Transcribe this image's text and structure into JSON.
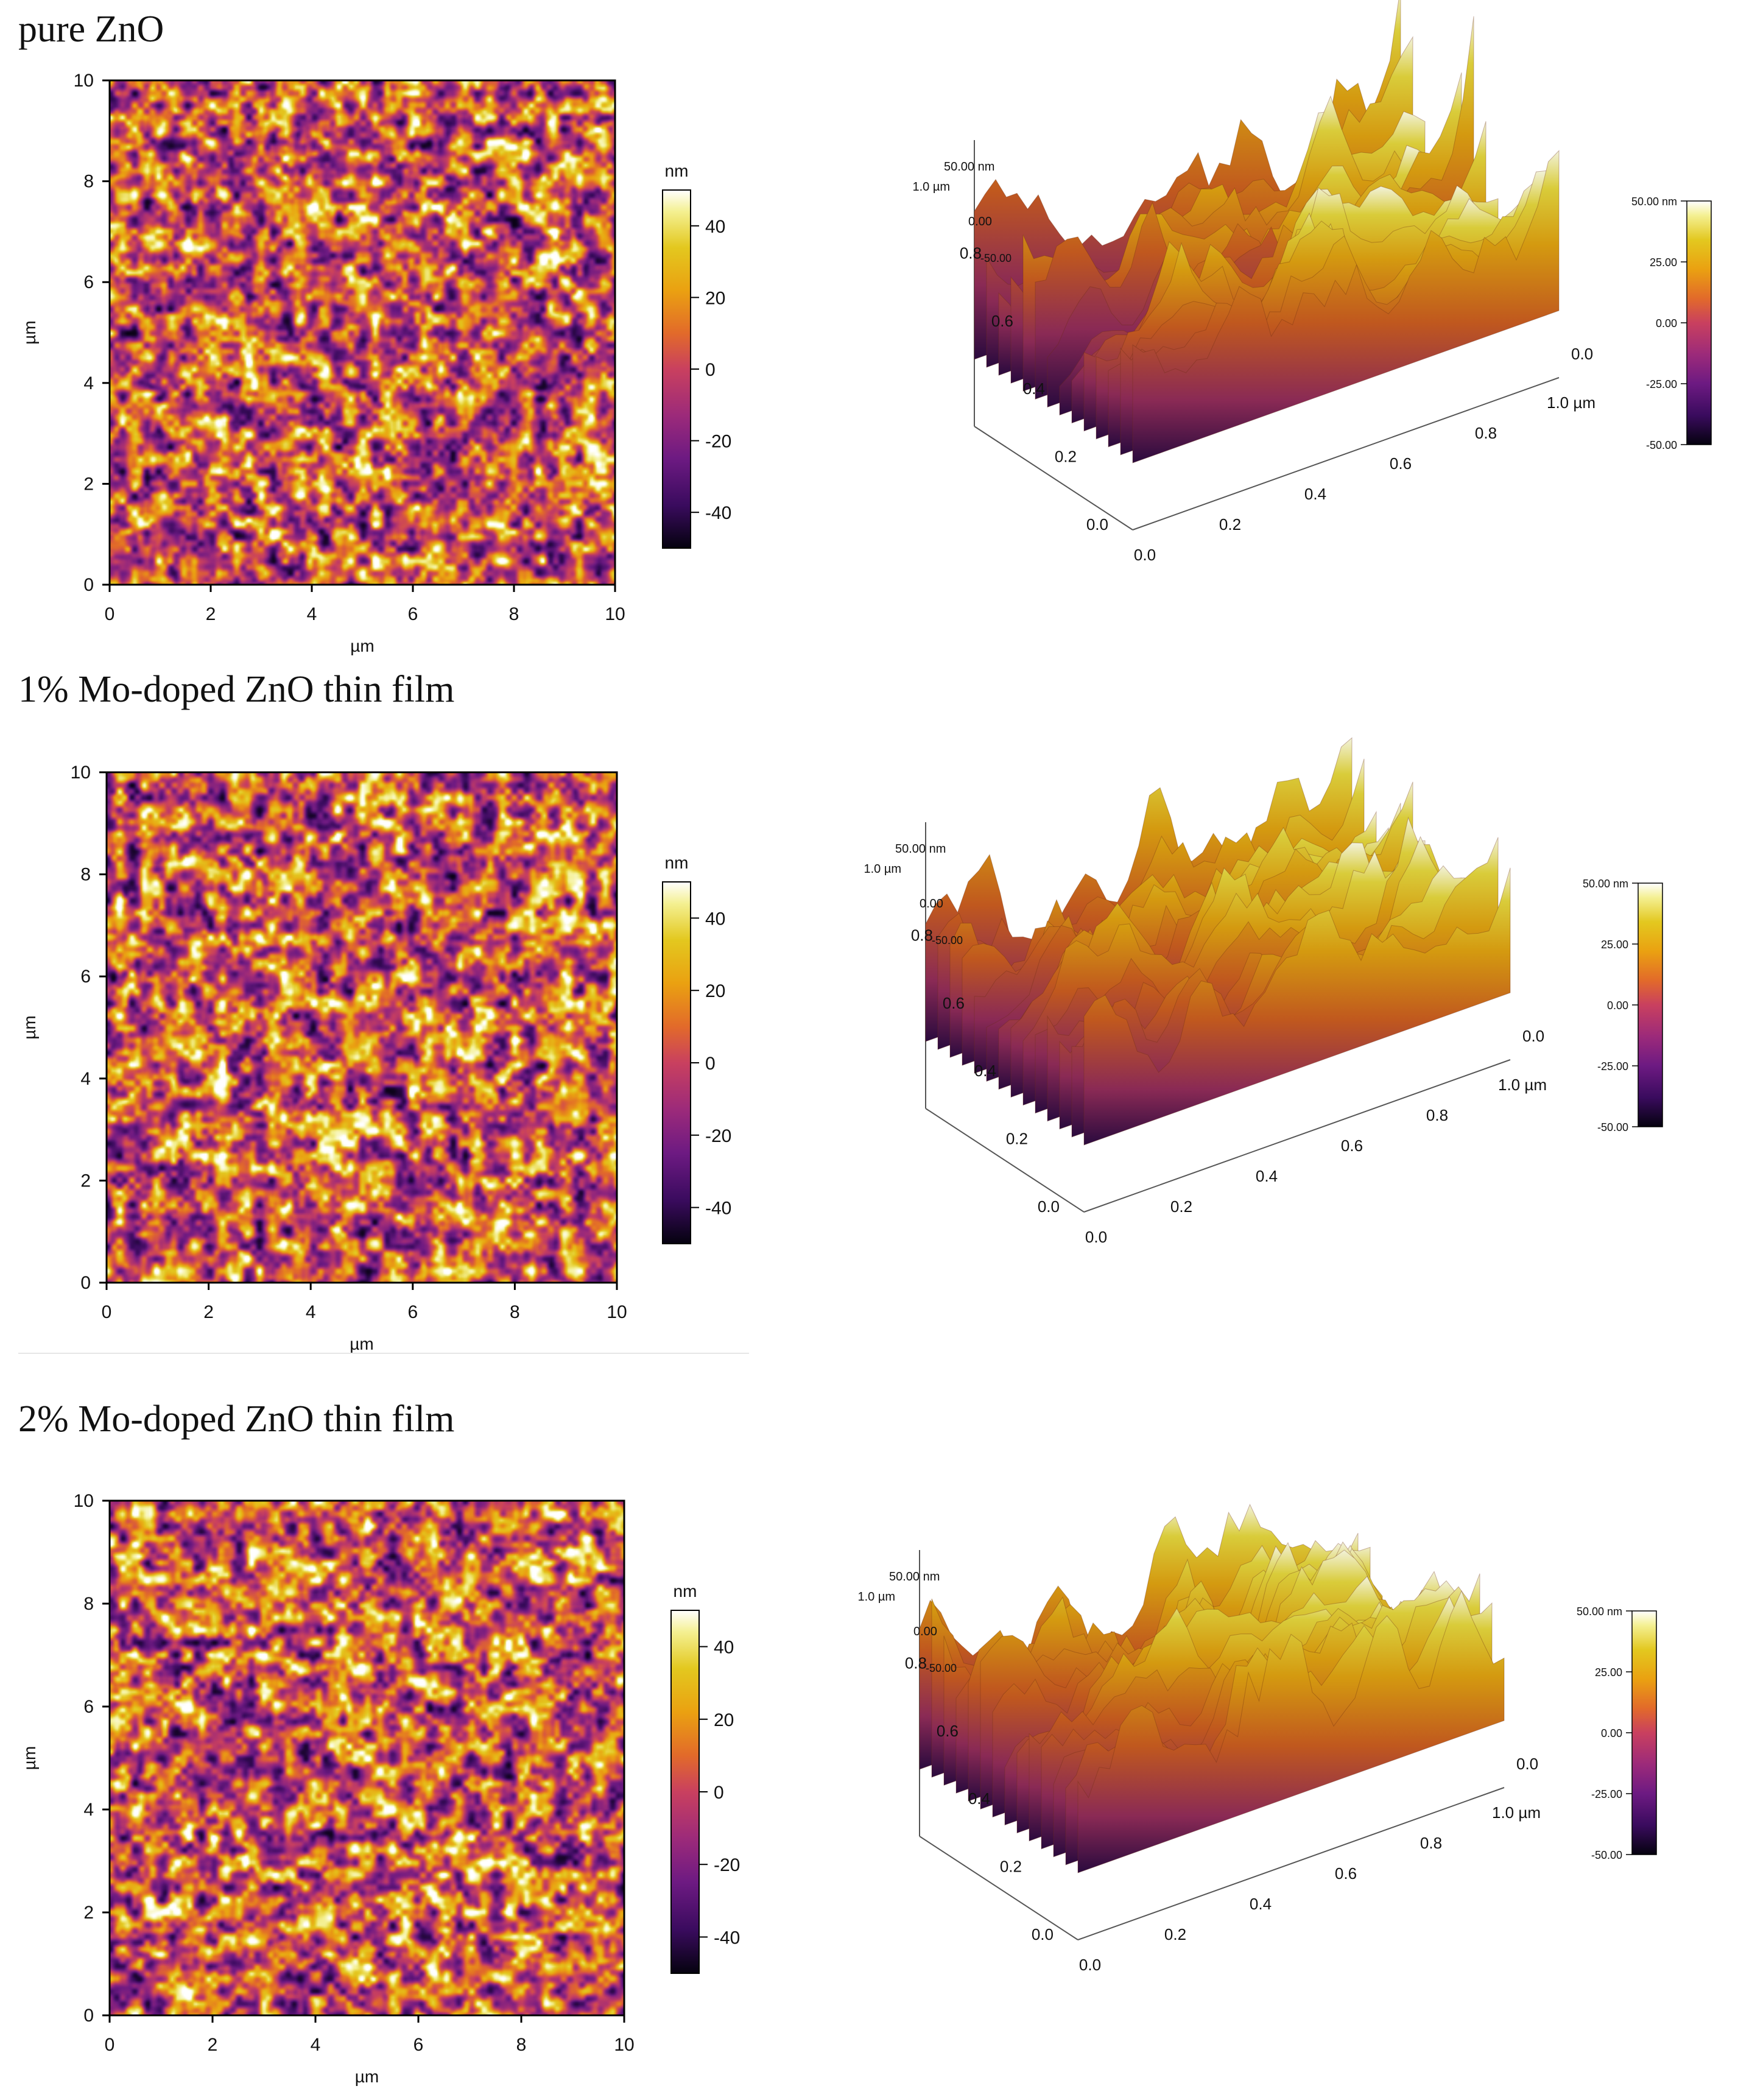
{
  "panels": [
    {
      "title": "pure ZnO",
      "map2d": {
        "axis_unit": "µm",
        "x_ticks": [
          "0",
          "2",
          "4",
          "6",
          "8",
          "10"
        ],
        "y_ticks": [
          "0",
          "2",
          "4",
          "6",
          "8",
          "10"
        ],
        "colorbar_unit": "nm",
        "colorbar_ticks": [
          "40",
          "20",
          "0",
          "-20",
          "-40"
        ]
      },
      "map3d": {
        "z_labels": [
          "50.00 nm",
          "0.00",
          "-50.00"
        ],
        "y_axis_labels": [
          "1.0 µm",
          "0.8",
          "0.6",
          "0.4",
          "0.2",
          "0.0"
        ],
        "x_axis_labels": [
          "0.0",
          "0.2",
          "0.4",
          "0.6",
          "0.8",
          "1.0 µm"
        ],
        "back_label": "0.0",
        "colorbar_ticks": [
          "50.00 nm",
          "25.00",
          "0.00",
          "-25.00",
          "-50.00"
        ]
      }
    },
    {
      "title": "1% Mo-doped ZnO thin film",
      "map2d": {
        "axis_unit": "µm",
        "x_ticks": [
          "0",
          "2",
          "4",
          "6",
          "8",
          "10"
        ],
        "y_ticks": [
          "0",
          "2",
          "4",
          "6",
          "8",
          "10"
        ],
        "colorbar_unit": "nm",
        "colorbar_ticks": [
          "40",
          "20",
          "0",
          "-20",
          "-40"
        ]
      },
      "map3d": {
        "z_labels": [
          "50.00 nm",
          "0.00",
          "-50.00"
        ],
        "y_axis_labels": [
          "1.0 µm",
          "0.8",
          "0.6",
          "0.4",
          "0.2",
          "0.0"
        ],
        "x_axis_labels": [
          "0.0",
          "0.2",
          "0.4",
          "0.6",
          "0.8",
          "1.0 µm"
        ],
        "back_label": "0.0",
        "colorbar_ticks": [
          "50.00 nm",
          "25.00",
          "0.00",
          "-25.00",
          "-50.00"
        ]
      }
    },
    {
      "title": "2% Mo-doped ZnO thin film",
      "map2d": {
        "axis_unit": "µm",
        "x_ticks": [
          "0",
          "2",
          "4",
          "6",
          "8",
          "10"
        ],
        "y_ticks": [
          "0",
          "2",
          "4",
          "6",
          "8",
          "10"
        ],
        "colorbar_unit": "nm",
        "colorbar_ticks": [
          "40",
          "20",
          "0",
          "-20",
          "-40"
        ]
      },
      "map3d": {
        "z_labels": [
          "50.00 nm",
          "0.00",
          "-50.00"
        ],
        "y_axis_labels": [
          "1.0 µm",
          "0.8",
          "0.6",
          "0.4",
          "0.2",
          "0.0"
        ],
        "x_axis_labels": [
          "0.0",
          "0.2",
          "0.4",
          "0.6",
          "0.8",
          "1.0 µm"
        ],
        "back_label": "0.0",
        "colorbar_ticks": [
          "50.00 nm",
          "25.00",
          "0.00",
          "-25.00",
          "-50.00"
        ]
      }
    }
  ],
  "colormap": [
    "#05020f",
    "#3a0b5e",
    "#6d1a82",
    "#9c2a7a",
    "#c9405f",
    "#e26a2a",
    "#eaa111",
    "#e3c81f",
    "#f4f091",
    "#ffffff"
  ]
}
